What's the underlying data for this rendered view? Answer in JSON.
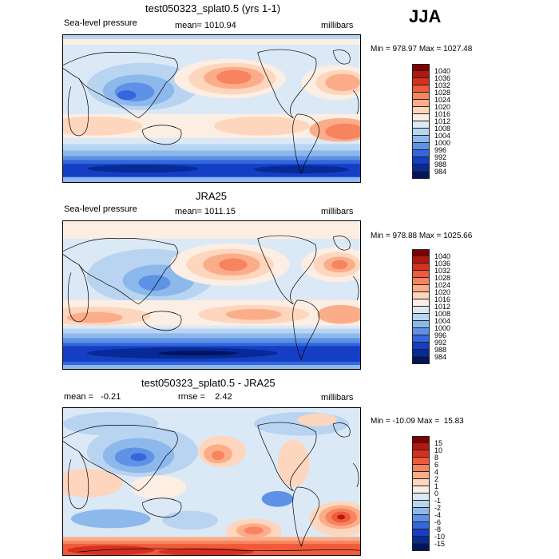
{
  "season": "JJA",
  "panels": [
    {
      "title": "test050323_splat0.5 (yrs 1-1)",
      "left_label": "Sea-level pressure",
      "center_label": "mean= 1010.94",
      "right_label": "millibars",
      "minmax": "Min = 978.97 Max = 1027.48",
      "colorbar_labels": [
        "1040",
        "1036",
        "1032",
        "1028",
        "1024",
        "1020",
        "1016",
        "1012",
        "1008",
        "1004",
        "1000",
        "996",
        "992",
        "988",
        "984"
      ]
    },
    {
      "title": "JRA25",
      "left_label": "Sea-level pressure",
      "center_label": "mean= 1011.15",
      "right_label": "millibars",
      "minmax": "Min = 978.88 Max = 1025.66",
      "colorbar_labels": [
        "1040",
        "1036",
        "1032",
        "1028",
        "1024",
        "1020",
        "1016",
        "1012",
        "1008",
        "1004",
        "1000",
        "996",
        "992",
        "988",
        "984"
      ]
    },
    {
      "title": "test050323_splat0.5 - JRA25",
      "left_label": "mean =   -0.21",
      "center_label": "rmse =    2.42",
      "right_label": "millibars",
      "minmax": "Min = -10.09 Max =  15.83",
      "colorbar_labels": [
        "15",
        "10",
        "8",
        "6",
        "4",
        "2",
        "1",
        "0",
        "-1",
        "-2",
        "-4",
        "-6",
        "-8",
        "-10",
        "-15"
      ]
    }
  ],
  "colors": {
    "abs_scale": [
      "#7f0000",
      "#b2180e",
      "#d7301f",
      "#ef5a3a",
      "#f7845e",
      "#fbad8a",
      "#fdd6bd",
      "#fdeee3",
      "#dbe9f6",
      "#b8d4f1",
      "#8db8ec",
      "#5e92e6",
      "#3467db",
      "#143fc4",
      "#072a96",
      "#00155e"
    ],
    "diff_scale": [
      "#7f0000",
      "#b2180e",
      "#d7301f",
      "#ef5a3a",
      "#f7845e",
      "#fbad8a",
      "#fdd6bd",
      "#fdeee3",
      "#dbe9f6",
      "#b8d4f1",
      "#8db8ec",
      "#5e92e6",
      "#3467db",
      "#143fc4",
      "#072a96",
      "#00155e"
    ]
  }
}
